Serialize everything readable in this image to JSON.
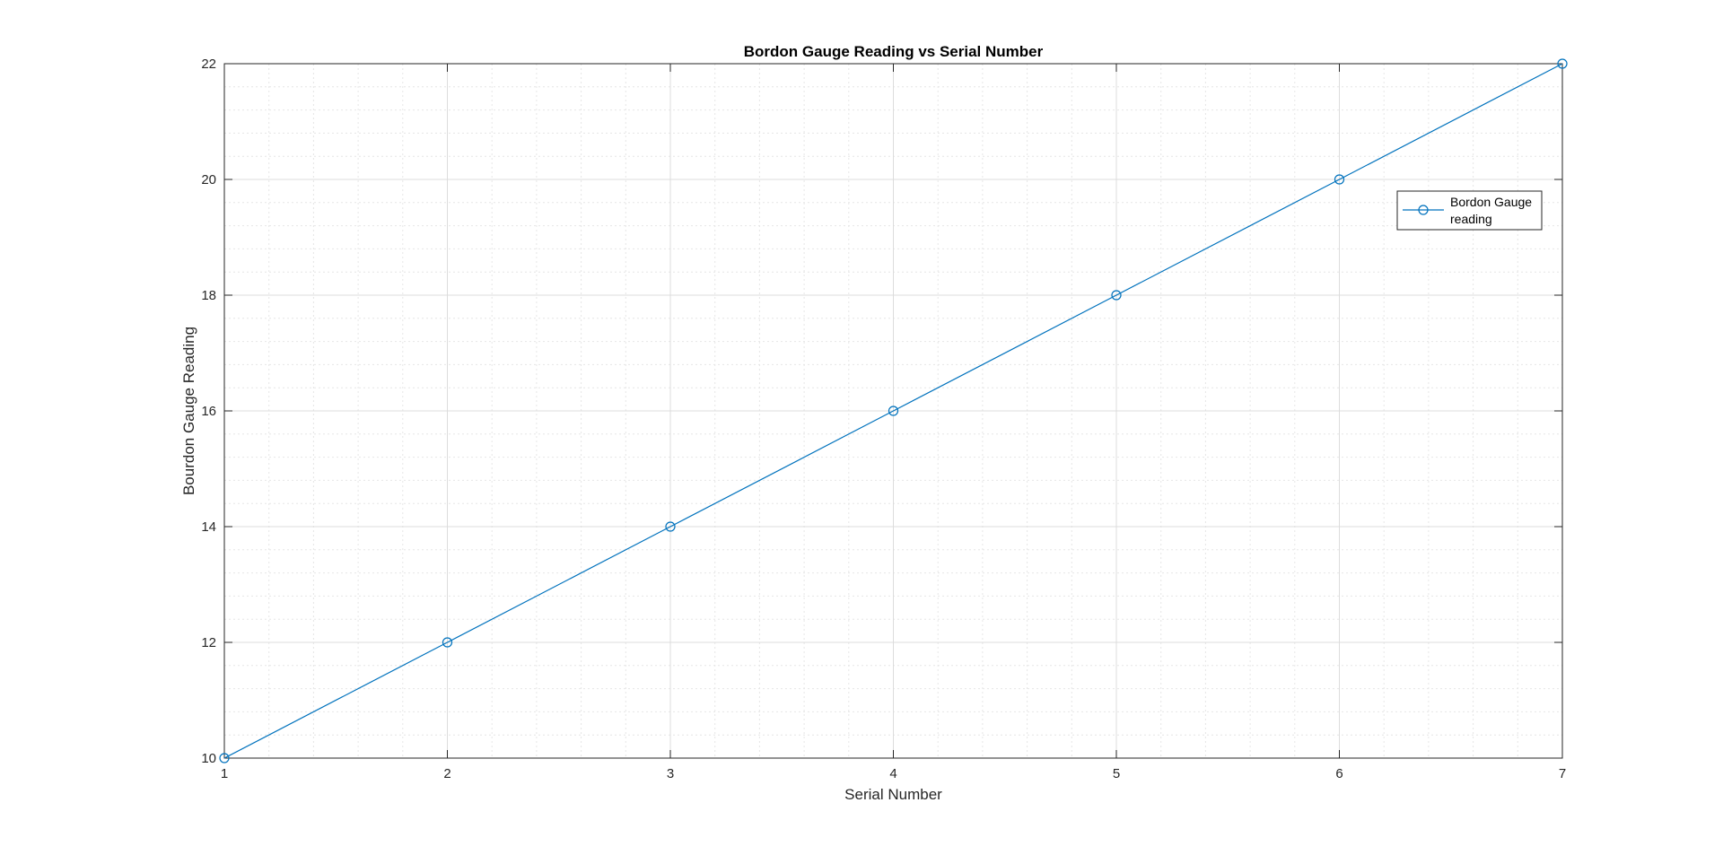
{
  "chart_data": {
    "type": "line",
    "title": "Bordon Gauge Reading vs Serial Number",
    "xlabel": "Serial Number",
    "ylabel": "Bourdon Gauge Reading",
    "xlim": [
      1,
      7
    ],
    "ylim": [
      10,
      22
    ],
    "x_ticks": [
      1,
      2,
      3,
      4,
      5,
      6,
      7
    ],
    "y_ticks": [
      10,
      12,
      14,
      16,
      18,
      20,
      22
    ],
    "grid": true,
    "minor_grid": true,
    "legend_position": "top-right",
    "series": [
      {
        "name": "Bordon Gauge reading",
        "legend_lines": [
          "Bordon Gauge",
          "reading"
        ],
        "color": "#0072bd",
        "marker": "circle",
        "x": [
          1,
          2,
          3,
          4,
          5,
          6,
          7
        ],
        "y": [
          10,
          12,
          14,
          16,
          18,
          20,
          22
        ]
      }
    ]
  }
}
